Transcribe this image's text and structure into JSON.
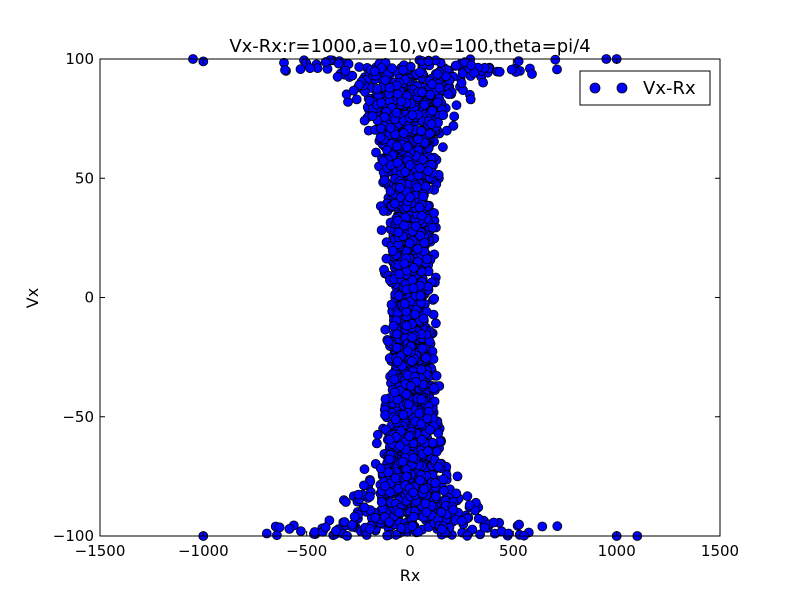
{
  "chart_data": {
    "type": "scatter",
    "title": "Vx-Rx:r=1000,a=10,v0=100,theta=pi/4",
    "xlabel": "Rx",
    "ylabel": "Vx",
    "xlim": [
      -1500,
      1500
    ],
    "ylim": [
      -100,
      100
    ],
    "xticks": [
      -1500,
      -1000,
      -500,
      0,
      500,
      1000,
      1500
    ],
    "yticks": [
      -100,
      -50,
      0,
      50,
      100
    ],
    "xtick_labels": [
      "−1500",
      "−1000",
      "−500",
      "0",
      "500",
      "1000",
      "1500"
    ],
    "ytick_labels": [
      "−100",
      "−50",
      "0",
      "50",
      "100"
    ],
    "grid": false,
    "legend": {
      "position": "top-right",
      "entries": [
        "Vx-Rx"
      ]
    },
    "series": [
      {
        "name": "Vx-Rx",
        "color": "#0000ff",
        "edge_color": "#000000",
        "marker": "circle",
        "description_profile": {
          "half_width_at_v": [
            [
              0,
              120
            ],
            [
              25,
              135
            ],
            [
              50,
              150
            ],
            [
              70,
              200
            ],
            [
              80,
              250
            ],
            [
              90,
              450
            ],
            [
              100,
              1000
            ]
          ]
        },
        "points": [
          [
            0,
            0
          ],
          [
            -120,
            10
          ],
          [
            110,
            -15
          ],
          [
            -90,
            30
          ],
          [
            95,
            -40
          ],
          [
            -150,
            55
          ],
          [
            140,
            50
          ],
          [
            -200,
            70
          ],
          [
            210,
            72
          ],
          [
            -300,
            82
          ],
          [
            290,
            85
          ],
          [
            -600,
            95
          ],
          [
            580,
            96
          ],
          [
            -1000,
            99
          ],
          [
            950,
            100
          ],
          [
            -1050,
            100
          ],
          [
            1000,
            100
          ],
          [
            -130,
            -55
          ],
          [
            150,
            -60
          ],
          [
            -220,
            -72
          ],
          [
            230,
            -75
          ],
          [
            -320,
            -85
          ],
          [
            330,
            -88
          ],
          [
            -650,
            -96
          ],
          [
            640,
            -96
          ],
          [
            -1000,
            -100
          ],
          [
            1000,
            -100
          ],
          [
            1100,
            -100
          ]
        ]
      }
    ]
  }
}
